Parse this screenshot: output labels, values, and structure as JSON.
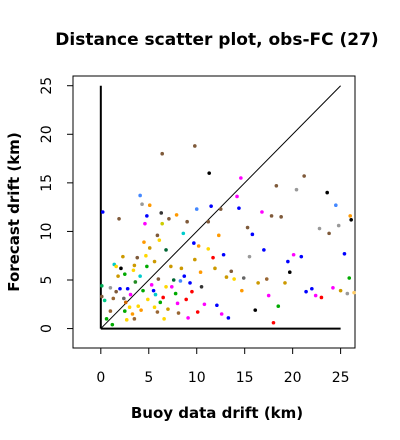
{
  "chart_data": {
    "type": "scatter",
    "title": "Distance scatter plot, obs-FC (27)",
    "xlabel": "Buoy data drift (km)",
    "ylabel": "Forecast drift (km)",
    "xlim": [
      -2.9,
      26.5
    ],
    "ylim": [
      -2.0,
      26.0
    ],
    "xticks": [
      0,
      5,
      10,
      15,
      20,
      25
    ],
    "yticks": [
      0,
      5,
      10,
      15,
      20,
      25
    ],
    "grid": false,
    "reference_lines": [
      {
        "kind": "diagonal",
        "from": [
          0,
          0
        ],
        "to": [
          25,
          25
        ],
        "color": "#000000"
      },
      {
        "kind": "axis-x",
        "from": [
          0,
          0
        ],
        "to": [
          25,
          0
        ],
        "color": "#000000"
      },
      {
        "kind": "axis-y",
        "from": [
          0,
          0
        ],
        "to": [
          0,
          25
        ],
        "color": "#000000"
      }
    ],
    "points": [
      [
        0.2,
        12.0,
        "#0000ff"
      ],
      [
        0.1,
        4.4,
        "#00aa55"
      ],
      [
        0.1,
        3.3,
        "#7f5a3a"
      ],
      [
        0.4,
        2.9,
        "#00cc88"
      ],
      [
        1.0,
        4.2,
        "#999999"
      ],
      [
        1.4,
        6.6,
        "#00cccc"
      ],
      [
        1.3,
        3.1,
        "#996633"
      ],
      [
        1.6,
        6.4,
        "#ffd700"
      ],
      [
        1.9,
        11.3,
        "#7f5a3a"
      ],
      [
        2.1,
        6.2,
        "#000000"
      ],
      [
        2.3,
        7.4,
        "#cc9900"
      ],
      [
        2.5,
        5.6,
        "#00aa00"
      ],
      [
        2.0,
        4.1,
        "#0000ff"
      ],
      [
        2.4,
        3.1,
        "#666666"
      ],
      [
        2.6,
        2.7,
        "#cc6600"
      ],
      [
        2.5,
        1.8,
        "#00aa00"
      ],
      [
        3.0,
        2.2,
        "#ffd700"
      ],
      [
        3.3,
        1.5,
        "#ff9900"
      ],
      [
        3.5,
        1.0,
        "#996633"
      ],
      [
        3.6,
        4.8,
        "#228b22"
      ],
      [
        3.5,
        6.5,
        "#cc9900"
      ],
      [
        3.8,
        7.3,
        "#7f5a3a"
      ],
      [
        4.1,
        13.7,
        "#4488ff"
      ],
      [
        4.3,
        12.8,
        "#999999"
      ],
      [
        4.6,
        10.8,
        "#ff00ff"
      ],
      [
        4.8,
        11.6,
        "#0000ff"
      ],
      [
        5.1,
        12.7,
        "#ff9900"
      ],
      [
        5.1,
        8.3,
        "#cc9900"
      ],
      [
        4.5,
        8.9,
        "#ff9900"
      ],
      [
        4.7,
        7.5,
        "#ffd700"
      ],
      [
        4.8,
        6.4,
        "#00aa00"
      ],
      [
        5.3,
        4.5,
        "#ff00ff"
      ],
      [
        5.5,
        3.9,
        "#0000ff"
      ],
      [
        5.7,
        3.5,
        "#00cccc"
      ],
      [
        5.6,
        2.2,
        "#ffd700"
      ],
      [
        5.9,
        1.7,
        "#996633"
      ],
      [
        6.2,
        2.7,
        "#00aa00"
      ],
      [
        6.5,
        3.2,
        "#ff0000"
      ],
      [
        6.0,
        5.1,
        "#7f5a3a"
      ],
      [
        6.1,
        9.1,
        "#ffd700"
      ],
      [
        6.3,
        11.9,
        "#333333"
      ],
      [
        6.4,
        10.8,
        "#cccc00"
      ],
      [
        6.4,
        18.0,
        "#7f5a3a"
      ],
      [
        6.8,
        8.1,
        "#006633"
      ],
      [
        7.1,
        11.3,
        "#7f5a3a"
      ],
      [
        7.3,
        6.4,
        "#cc9900"
      ],
      [
        7.4,
        4.3,
        "#ff00ff"
      ],
      [
        7.8,
        3.6,
        "#00aa00"
      ],
      [
        8.0,
        2.6,
        "#ff00ff"
      ],
      [
        8.1,
        1.6,
        "#996633"
      ],
      [
        8.4,
        6.2,
        "#cc9900"
      ],
      [
        8.6,
        9.8,
        "#00cccc"
      ],
      [
        8.7,
        5.4,
        "#0000ff"
      ],
      [
        9.0,
        11.0,
        "#7f5a3a"
      ],
      [
        9.3,
        4.7,
        "#0000ff"
      ],
      [
        9.5,
        3.8,
        "#ff0000"
      ],
      [
        9.7,
        8.8,
        "#0000ff"
      ],
      [
        9.8,
        7.1,
        "#cc9900"
      ],
      [
        9.8,
        18.8,
        "#7f5a3a"
      ],
      [
        10.0,
        12.3,
        "#4488ff"
      ],
      [
        10.2,
        8.5,
        "#ff9900"
      ],
      [
        10.4,
        5.8,
        "#ff9900"
      ],
      [
        10.5,
        4.3,
        "#333333"
      ],
      [
        10.8,
        2.5,
        "#ff00ff"
      ],
      [
        11.2,
        11.0,
        "#7f5a3a"
      ],
      [
        11.3,
        16.0,
        "#000000"
      ],
      [
        11.5,
        12.6,
        "#0000ff"
      ],
      [
        11.7,
        7.3,
        "#ff0000"
      ],
      [
        11.9,
        6.2,
        "#cc9900"
      ],
      [
        12.1,
        2.4,
        "#0000ff"
      ],
      [
        12.3,
        9.6,
        "#ff9900"
      ],
      [
        12.5,
        12.3,
        "#7f5a3a"
      ],
      [
        12.6,
        1.5,
        "#ff00ff"
      ],
      [
        12.8,
        7.6,
        "#0000ff"
      ],
      [
        13.1,
        5.3,
        "#cc9900"
      ],
      [
        13.3,
        1.1,
        "#0000ff"
      ],
      [
        13.6,
        5.9,
        "#7f5a3a"
      ],
      [
        13.9,
        5.1,
        "#ffd700"
      ],
      [
        14.2,
        13.6,
        "#ff00ff"
      ],
      [
        14.4,
        12.4,
        "#0000ff"
      ],
      [
        14.6,
        15.5,
        "#ff00ff"
      ],
      [
        14.7,
        3.9,
        "#ff9900"
      ],
      [
        14.9,
        5.2,
        "#666666"
      ],
      [
        15.3,
        10.4,
        "#7f5a3a"
      ],
      [
        15.5,
        7.4,
        "#999999"
      ],
      [
        15.8,
        9.7,
        "#0000ff"
      ],
      [
        16.1,
        1.9,
        "#000000"
      ],
      [
        16.4,
        4.7,
        "#cc9900"
      ],
      [
        16.8,
        12.0,
        "#ff00ff"
      ],
      [
        17.0,
        8.1,
        "#0000ff"
      ],
      [
        17.3,
        5.1,
        "#996633"
      ],
      [
        17.5,
        3.4,
        "#ff00ff"
      ],
      [
        17.8,
        11.6,
        "#7f5a3a"
      ],
      [
        18.0,
        0.6,
        "#ff0000"
      ],
      [
        18.3,
        14.7,
        "#7f5a3a"
      ],
      [
        18.5,
        2.3,
        "#00aa00"
      ],
      [
        18.8,
        11.5,
        "#7f5a3a"
      ],
      [
        19.2,
        4.7,
        "#cc9900"
      ],
      [
        19.5,
        6.9,
        "#0000ff"
      ],
      [
        19.7,
        5.8,
        "#000000"
      ],
      [
        20.1,
        7.6,
        "#ff00ff"
      ],
      [
        20.4,
        14.3,
        "#999999"
      ],
      [
        20.9,
        7.4,
        "#0000ff"
      ],
      [
        21.2,
        15.7,
        "#7f5a3a"
      ],
      [
        21.4,
        3.8,
        "#0000ff"
      ],
      [
        22.0,
        4.1,
        "#0000ff"
      ],
      [
        22.4,
        3.4,
        "#ff00ff"
      ],
      [
        22.8,
        10.3,
        "#999999"
      ],
      [
        23.0,
        3.2,
        "#ff0000"
      ],
      [
        23.6,
        14.0,
        "#000000"
      ],
      [
        23.8,
        9.8,
        "#7f5a3a"
      ],
      [
        24.2,
        4.2,
        "#ff00ff"
      ],
      [
        24.5,
        12.7,
        "#4488ff"
      ],
      [
        24.8,
        10.6,
        "#999999"
      ],
      [
        25.0,
        3.9,
        "#cc9900"
      ],
      [
        25.4,
        7.7,
        "#0000ff"
      ],
      [
        25.7,
        3.6,
        "#999999"
      ],
      [
        25.9,
        5.2,
        "#00aa00"
      ],
      [
        26.1,
        11.2,
        "#000000"
      ],
      [
        26.0,
        11.6,
        "#ff9900"
      ],
      [
        26.4,
        3.7,
        "#ffcc66"
      ],
      [
        1.8,
        5.4,
        "#cc9900"
      ],
      [
        1.6,
        3.8,
        "#7f5a3a"
      ],
      [
        2.8,
        4.1,
        "#0000ff"
      ],
      [
        3.1,
        3.5,
        "#ff00ff"
      ],
      [
        3.9,
        2.3,
        "#ffd700"
      ],
      [
        4.2,
        1.9,
        "#ff9900"
      ],
      [
        4.4,
        3.9,
        "#00aa00"
      ],
      [
        4.9,
        3.0,
        "#ffd700"
      ],
      [
        2.7,
        0.9,
        "#ffd700"
      ],
      [
        1.2,
        0.4,
        "#00aa00"
      ],
      [
        6.8,
        4.3,
        "#ffd700"
      ],
      [
        7.0,
        2.0,
        "#cc9900"
      ],
      [
        7.6,
        5.0,
        "#006633"
      ],
      [
        8.9,
        3.0,
        "#ff0000"
      ],
      [
        9.1,
        1.1,
        "#ff00ff"
      ],
      [
        3.4,
        6.0,
        "#ffd700"
      ],
      [
        5.6,
        6.9,
        "#cc9900"
      ],
      [
        4.1,
        5.4,
        "#00cccc"
      ],
      [
        6.6,
        1.0,
        "#ffd700"
      ],
      [
        8.3,
        4.9,
        "#4488ff"
      ],
      [
        10.1,
        1.7,
        "#ff0000"
      ],
      [
        1.0,
        1.8,
        "#996633"
      ],
      [
        0.6,
        1.0,
        "#00aa00"
      ],
      [
        11.2,
        8.2,
        "#ffd700"
      ],
      [
        7.9,
        11.7,
        "#ff9900"
      ],
      [
        5.9,
        9.6,
        "#7f5a3a"
      ]
    ]
  }
}
